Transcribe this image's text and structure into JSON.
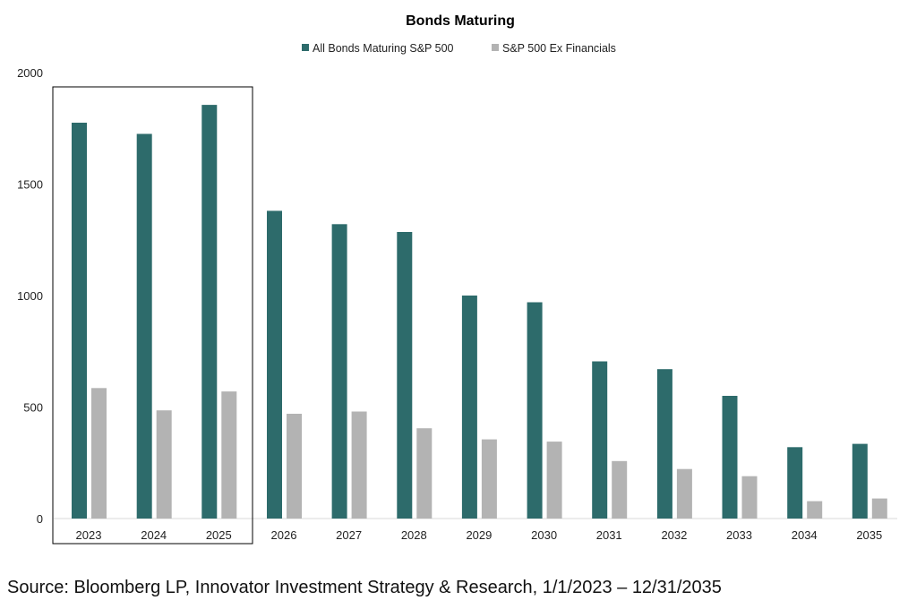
{
  "source_text": "Source: Bloomberg LP, Innovator Investment Strategy & Research, 1/1/2023 – 12/31/2035",
  "chart_data": {
    "type": "bar",
    "title": "Bonds Maturing",
    "xlabel": "",
    "ylabel": "",
    "ylim": [
      0,
      2000
    ],
    "yticks": [
      0,
      500,
      1000,
      1500,
      2000
    ],
    "grid": false,
    "legend_position": "top-center",
    "categories": [
      "2023",
      "2024",
      "2025",
      "2026",
      "2027",
      "2028",
      "2029",
      "2030",
      "2031",
      "2032",
      "2033",
      "2034",
      "2035"
    ],
    "series": [
      {
        "name": "All Bonds Maturing S&P 500",
        "color": "#2d6b6b",
        "values": [
          1775,
          1725,
          1855,
          1380,
          1320,
          1285,
          1000,
          970,
          705,
          670,
          550,
          320,
          335
        ]
      },
      {
        "name": "S&P 500 Ex Financials",
        "color": "#b3b3b3",
        "values": [
          585,
          485,
          570,
          470,
          480,
          405,
          355,
          345,
          258,
          222,
          190,
          78,
          90
        ]
      }
    ],
    "highlight_box": {
      "categories": [
        "2023",
        "2024",
        "2025"
      ],
      "color": "#000000"
    }
  }
}
